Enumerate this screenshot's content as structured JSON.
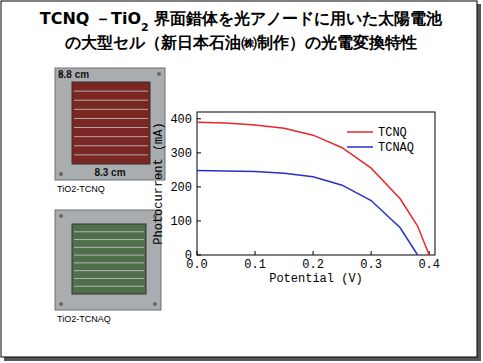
{
  "slide": {
    "title_lines": [
      [
        {
          "text": "TCNQ －TiO"
        },
        {
          "text": "2",
          "sub": true
        },
        {
          "text": " 界面錯体を光アノードに用いた太陽電池"
        }
      ],
      [
        {
          "text": "の大型セル（新日本石油㈱制作）の光電変換特性"
        }
      ]
    ],
    "photos": [
      {
        "caption": "TiO2-TCNQ",
        "color": "#7a2622",
        "dims": [
          "8.8 cm",
          "8.3 cm"
        ]
      },
      {
        "caption": "TiO2-TCNAQ",
        "color": "#4f6e4a"
      }
    ]
  },
  "chart_data": {
    "type": "line",
    "xlabel": "Potential (V)",
    "ylabel": "Photocurrent (mA)",
    "x": [
      0,
      0.05,
      0.1,
      0.15,
      0.2,
      0.25,
      0.3,
      0.35,
      0.38,
      0.4
    ],
    "series": [
      {
        "name": "TCNQ",
        "color": "#e8262b",
        "values": [
          390,
          388,
          382,
          372,
          352,
          315,
          255,
          165,
          85,
          0
        ]
      },
      {
        "name": "TCNAQ",
        "color": "#2630c8",
        "values": [
          248,
          247,
          245,
          240,
          230,
          205,
          160,
          80,
          0,
          null
        ]
      }
    ],
    "xlim": [
      0,
      0.41
    ],
    "ylim": [
      0,
      420
    ],
    "xticks": [
      {
        "value": 0,
        "label": "0.0"
      },
      0.1,
      0.2,
      0.3,
      0.4
    ],
    "yticks": [
      0,
      100,
      200,
      300,
      400
    ],
    "legend": "upper right",
    "grid": false
  }
}
